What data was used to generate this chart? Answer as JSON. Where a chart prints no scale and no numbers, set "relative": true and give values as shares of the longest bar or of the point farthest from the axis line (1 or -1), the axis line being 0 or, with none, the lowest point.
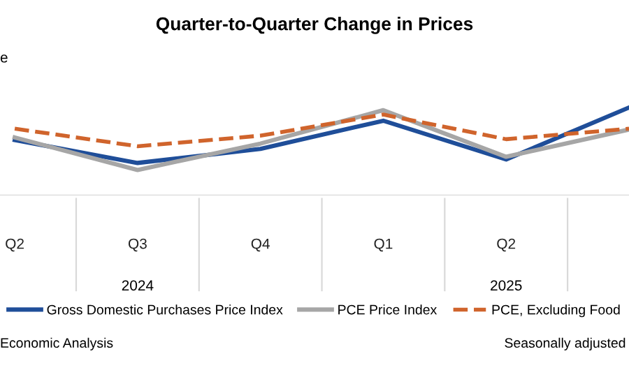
{
  "chart_data": {
    "type": "line",
    "title": "Quarter-to-Quarter Change in Prices",
    "ylabel": "e",
    "relative": true,
    "categories": [
      "Q2",
      "Q3",
      "Q4",
      "Q1",
      "Q2",
      null
    ],
    "series": [
      {
        "name": "Gross Domestic Purchases Price Index",
        "color": "#1f4e99",
        "values": [
          0.63,
          0.37,
          0.53,
          0.85,
          0.41,
          1
        ]
      },
      {
        "name": "PCE Price Index",
        "color": "#a6a6a6",
        "values": [
          0.66,
          0.29,
          0.59,
          0.97,
          0.44,
          0.75
        ]
      },
      {
        "name": "PCE, Excluding Food",
        "color": "#d0642c",
        "line_style": "dashed",
        "values": [
          0.76,
          0.56,
          0.68,
          0.92,
          0.64,
          0.76
        ]
      }
    ],
    "annotations": [
      "2024",
      "2025",
      "Economic Analysis",
      "Seasonally adjusted"
    ],
    "legend": "bottom",
    "line_style": "solid",
    "marker": "none"
  }
}
